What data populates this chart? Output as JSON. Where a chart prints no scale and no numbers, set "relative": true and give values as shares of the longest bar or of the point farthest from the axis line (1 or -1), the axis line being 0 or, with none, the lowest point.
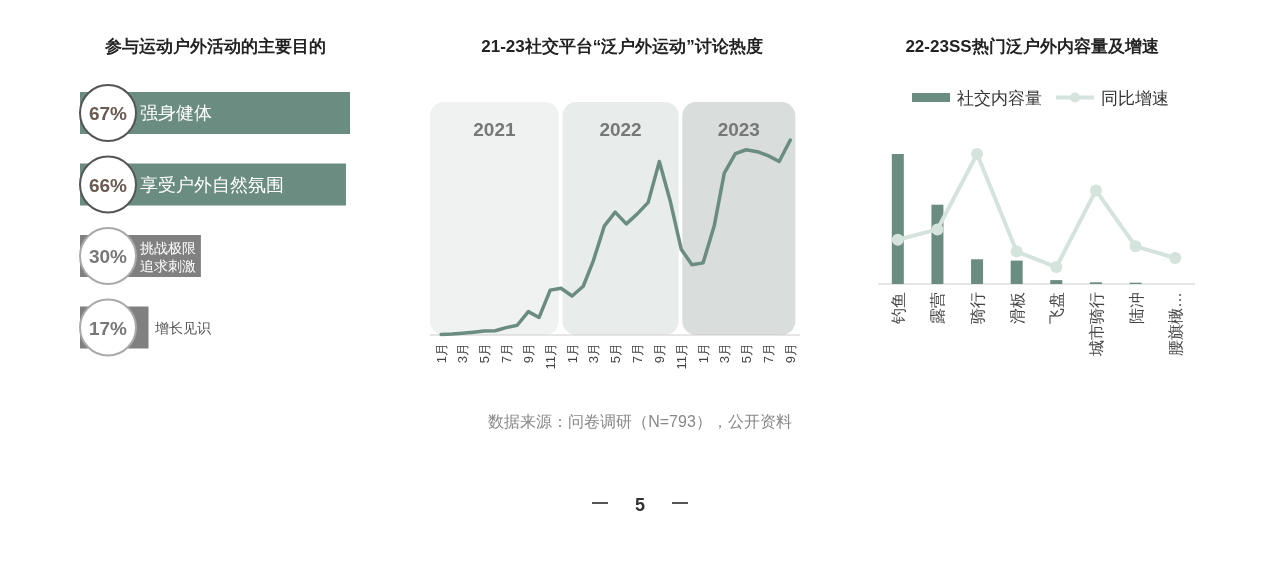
{
  "chart_data": [
    {
      "type": "bar",
      "orientation": "horizontal",
      "title": "参与运动户外活动的主要目的",
      "categories": [
        "强身健体",
        "享受户外自然氛围",
        "挑战极限追求刺激",
        "增长见识"
      ],
      "values": [
        67,
        66,
        30,
        17
      ],
      "value_labels": [
        "67%",
        "66%",
        "30%",
        "17%"
      ],
      "colors": [
        "#6b8c80",
        "#6b8c80",
        "#808080",
        "#808080"
      ]
    },
    {
      "type": "line",
      "title": "21-23社交平台“泛户外运动”讨论热度",
      "relative": true,
      "x": [
        "2021-01",
        "2021-02",
        "2021-03",
        "2021-04",
        "2021-05",
        "2021-06",
        "2021-07",
        "2021-08",
        "2021-09",
        "2021-10",
        "2021-11",
        "2021-12",
        "2022-01",
        "2022-02",
        "2022-03",
        "2022-04",
        "2022-05",
        "2022-06",
        "2022-07",
        "2022-08",
        "2022-09",
        "2022-10",
        "2022-11",
        "2022-12",
        "2023-01",
        "2023-02",
        "2023-03",
        "2023-04",
        "2023-05",
        "2023-06",
        "2023-07",
        "2023-08",
        "2023-09"
      ],
      "series": [
        {
          "color": "#6b8c80",
          "values": [
            0.003,
            0.005,
            0.009,
            0.014,
            0.02,
            0.022,
            0.038,
            0.05,
            0.12,
            0.09,
            0.23,
            0.24,
            0.2,
            0.25,
            0.38,
            0.56,
            0.63,
            0.57,
            0.62,
            0.68,
            0.89,
            0.69,
            0.44,
            0.36,
            0.37,
            0.56,
            0.83,
            0.93,
            0.95,
            0.94,
            0.92,
            0.89,
            1
          ]
        }
      ],
      "xlim": [
        "2020-12-01",
        "2023-09-28"
      ],
      "xticks": [
        {
          "value": "2021-01",
          "label": "1月"
        },
        {
          "value": "2021-03",
          "label": "3月"
        },
        {
          "value": "2021-05",
          "label": "5月"
        },
        {
          "value": "2021-07",
          "label": "7月"
        },
        {
          "value": "2021-09",
          "label": "9月"
        },
        {
          "value": "2021-11",
          "label": "11月"
        },
        {
          "value": "2022-01",
          "label": "1月"
        },
        {
          "value": "2022-03",
          "label": "3月"
        },
        {
          "value": "2022-05",
          "label": "5月"
        },
        {
          "value": "2022-07",
          "label": "7月"
        },
        {
          "value": "2022-09",
          "label": "9月"
        },
        {
          "value": "2022-11",
          "label": "11月"
        },
        {
          "value": "2023-01",
          "label": "1月"
        },
        {
          "value": "2023-03",
          "label": "3月"
        },
        {
          "value": "2023-05",
          "label": "5月"
        },
        {
          "value": "2023-07",
          "label": "7月"
        },
        {
          "value": "2023-09",
          "label": "9月"
        }
      ],
      "bands": [
        {
          "axis": "x",
          "from": "2020-12-01",
          "to": "2021-11-25",
          "label": "2021",
          "color": "#eff2f1"
        },
        {
          "axis": "x",
          "from": "2021-12-05",
          "to": "2022-10-25",
          "label": "2022",
          "color": "#e8edec"
        },
        {
          "axis": "x",
          "from": "2022-11-04",
          "to": "2023-09-15",
          "label": "2023",
          "color": "#d9dedc"
        }
      ],
      "annotations": [
        "数据来源：问卷调研（N=793），公开资料",
        "5"
      ]
    },
    {
      "type": "bar",
      "title": "22-23SS热门泛户外内容量及增速",
      "relative": true,
      "legend": "top",
      "categories": [
        "钓鱼",
        "露营",
        "骑行",
        "滑板",
        "飞盘",
        "城市骑行",
        "陆冲",
        "腰旗橄…"
      ],
      "series": [
        {
          "name": "社交内容量",
          "type": "bar",
          "color": "#6b8c80",
          "values": [
            1,
            0.61,
            0.19,
            0.18,
            0.03,
            0.013,
            0.01,
            0
          ]
        },
        {
          "name": "同比增速",
          "type": "line",
          "color": "#d4e3dc",
          "marker": "circle",
          "values": [
            0.34,
            0.42,
            1,
            0.25,
            0.13,
            0.72,
            0.29,
            0.2
          ]
        }
      ]
    }
  ]
}
